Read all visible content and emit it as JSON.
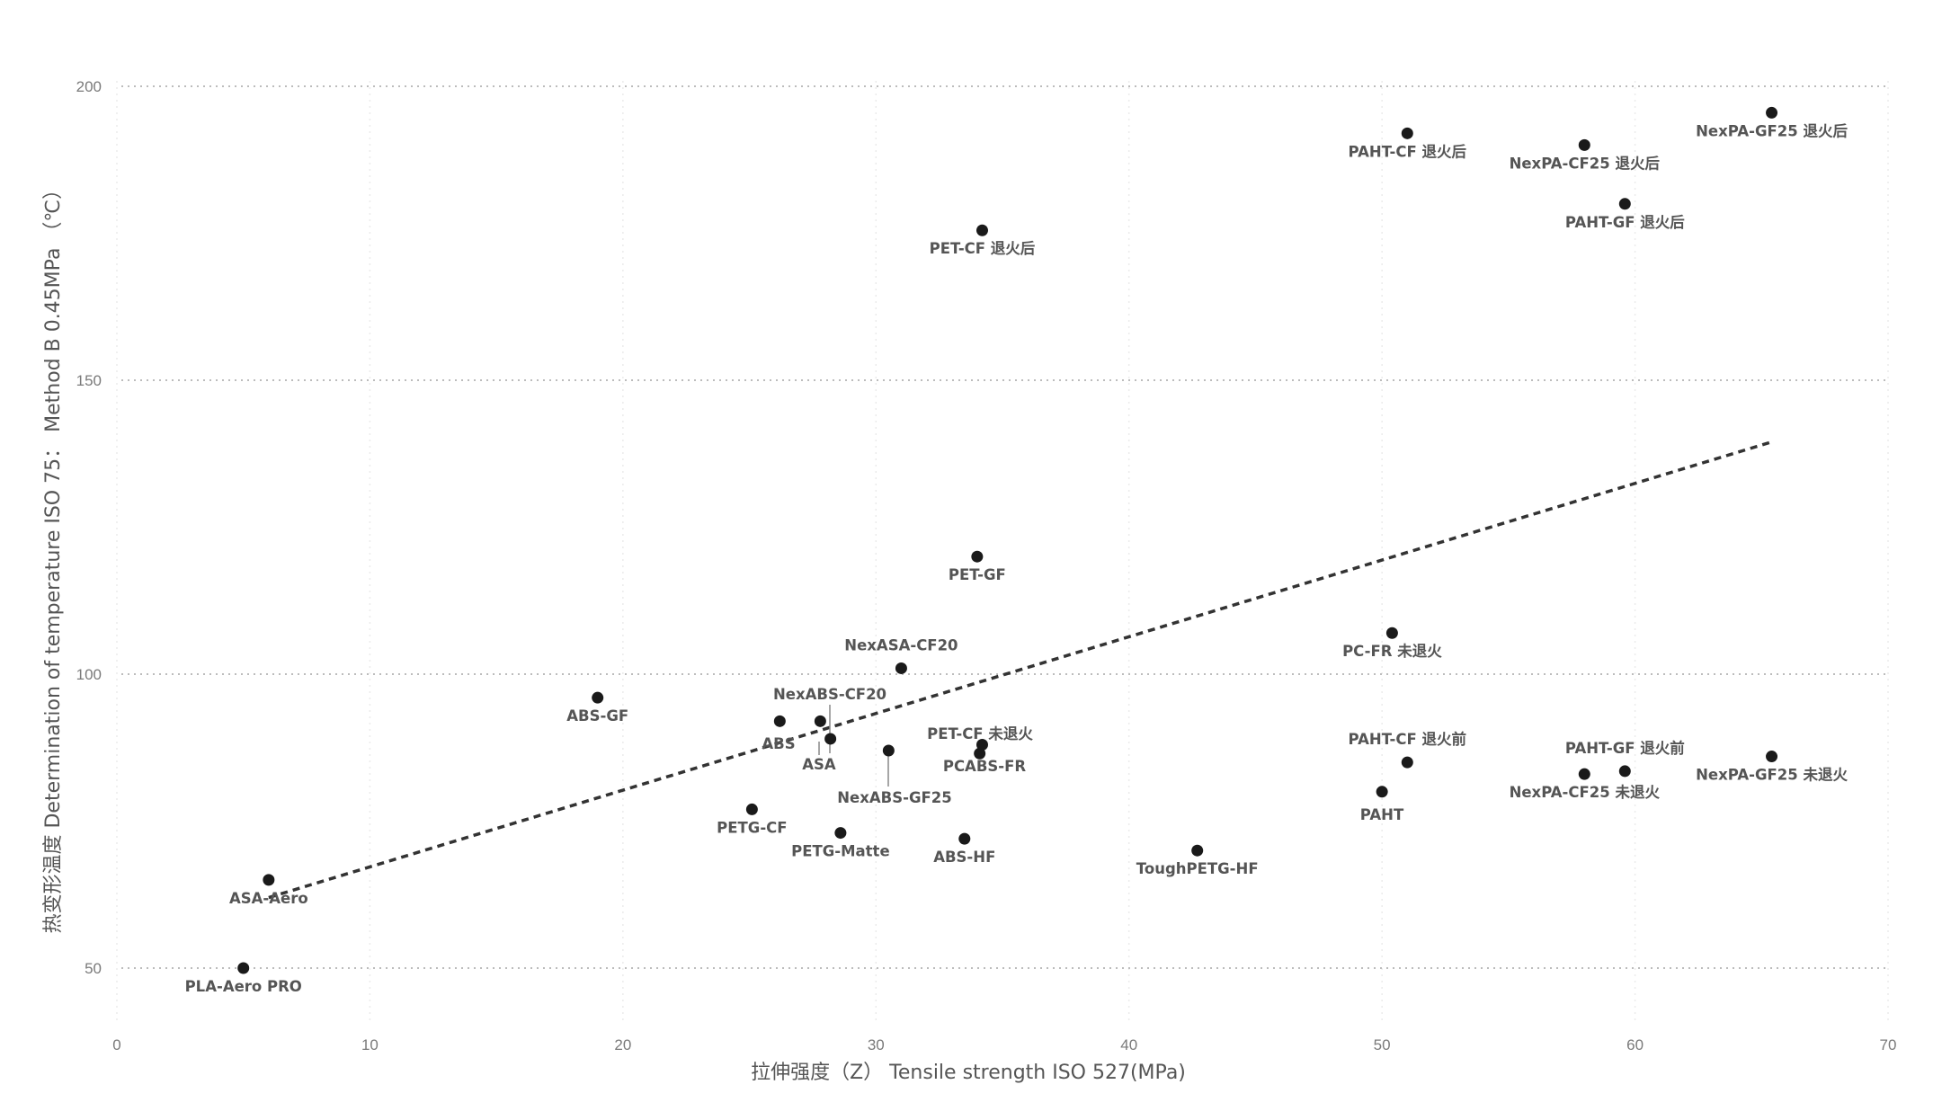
{
  "chart_data": {
    "type": "scatter",
    "title": "",
    "xlabel": "拉伸强度（Z） Tensile strength ISO 527(MPa)",
    "ylabel": "热变形温度 Determination of temperature ISO 75： Method B 0.45MPa （℃）",
    "xlim": [
      0,
      70
    ],
    "ylim": [
      40,
      205
    ],
    "xticks": [
      0,
      10,
      20,
      30,
      40,
      50,
      60,
      70
    ],
    "yticks": [
      50,
      100,
      150,
      200
    ],
    "grid": "horizontal-dotted",
    "trendline": {
      "style": "dashed",
      "x": [
        6,
        65.4
      ],
      "y": [
        62,
        139.5
      ]
    },
    "points": [
      {
        "label": "PLA-Aero PRO",
        "x": 5,
        "y": 50,
        "label_pos": "below"
      },
      {
        "label": "ASA-Aero",
        "x": 6,
        "y": 65,
        "label_pos": "below"
      },
      {
        "label": "ABS-GF",
        "x": 19,
        "y": 96,
        "label_pos": "below"
      },
      {
        "label": "ABS",
        "x": 26.2,
        "y": 92,
        "label_pos": "below"
      },
      {
        "label": "NexABS-CF20",
        "x": 27.8,
        "y": 92,
        "label_pos": "above-right"
      },
      {
        "label": "ASA",
        "x": 28.2,
        "y": 89,
        "label_pos": "below"
      },
      {
        "label": "PETG-CF",
        "x": 25.1,
        "y": 77,
        "label_pos": "below"
      },
      {
        "label": "PETG-Matte",
        "x": 28.6,
        "y": 73,
        "label_pos": "below"
      },
      {
        "label": "NexASA-CF20",
        "x": 31,
        "y": 101,
        "label_pos": "above"
      },
      {
        "label": "NexABS-GF25",
        "x": 30.5,
        "y": 87,
        "label_pos": "below"
      },
      {
        "label": "ABS-HF",
        "x": 33.5,
        "y": 72,
        "label_pos": "below"
      },
      {
        "label": "PET-CF 未退火",
        "x": 34.2,
        "y": 88,
        "label_pos": "above"
      },
      {
        "label": "PCABS-FR",
        "x": 34.1,
        "y": 86.5,
        "label_pos": "below"
      },
      {
        "label": "PET-GF",
        "x": 34,
        "y": 120,
        "label_pos": "below"
      },
      {
        "label": "PET-CF 退火后",
        "x": 34.2,
        "y": 175.5,
        "label_pos": "below"
      },
      {
        "label": "ToughPETG-HF",
        "x": 42.7,
        "y": 70,
        "label_pos": "below"
      },
      {
        "label": "PC-FR 未退火",
        "x": 50.4,
        "y": 107,
        "label_pos": "below"
      },
      {
        "label": "PAHT",
        "x": 50,
        "y": 80,
        "label_pos": "below"
      },
      {
        "label": "PAHT-CF 退火前",
        "x": 51,
        "y": 85,
        "label_pos": "above"
      },
      {
        "label": "PAHT-CF 退火后",
        "x": 51,
        "y": 192,
        "label_pos": "below"
      },
      {
        "label": "NexPA-CF25 退火后",
        "x": 58,
        "y": 190,
        "label_pos": "below"
      },
      {
        "label": "NexPA-CF25 未退火",
        "x": 58,
        "y": 83,
        "label_pos": "below"
      },
      {
        "label": "PAHT-GF 退火后",
        "x": 59.6,
        "y": 180,
        "label_pos": "below"
      },
      {
        "label": "PAHT-GF 退火前",
        "x": 59.6,
        "y": 83.5,
        "label_pos": "above"
      },
      {
        "label": "NexPA-GF25 退火后",
        "x": 65.4,
        "y": 195.5,
        "label_pos": "below"
      },
      {
        "label": "NexPA-GF25 未退火",
        "x": 65.4,
        "y": 86,
        "label_pos": "below"
      }
    ]
  }
}
